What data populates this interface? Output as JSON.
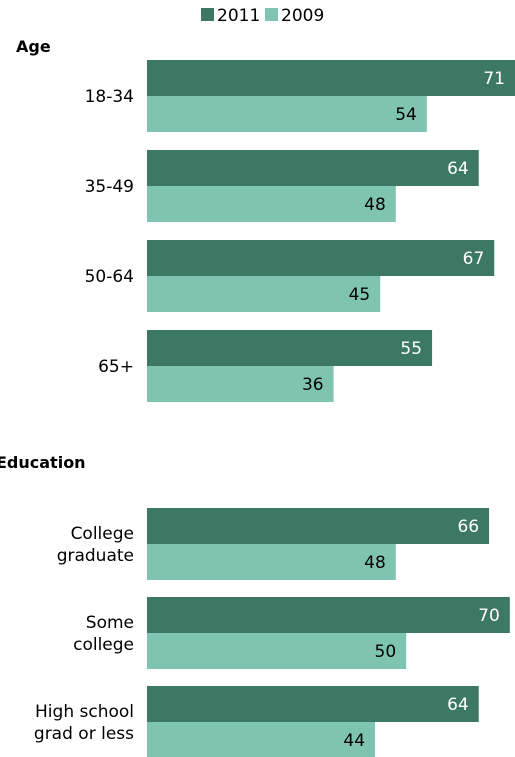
{
  "chart_data": {
    "type": "bar",
    "orientation": "horizontal",
    "legend": {
      "placement": "top",
      "entries": [
        {
          "name": "2011",
          "color": "#3d7864"
        },
        {
          "name": "2009",
          "color": "#7ec4b1"
        }
      ]
    },
    "series": [
      {
        "name": "2011",
        "color": "#3d7864"
      },
      {
        "name": "2009",
        "color": "#7ec4b1"
      }
    ],
    "xlim": [
      0,
      71
    ],
    "grid": false,
    "groups": [
      {
        "title": "Age",
        "categories": [
          {
            "label": [
              "18-34"
            ],
            "values": [
              71,
              54
            ]
          },
          {
            "label": [
              "35-49"
            ],
            "values": [
              64,
              48
            ]
          },
          {
            "label": [
              "50-64"
            ],
            "values": [
              67,
              45
            ]
          },
          {
            "label": [
              "65+"
            ],
            "values": [
              55,
              36
            ]
          }
        ]
      },
      {
        "title": "Education",
        "categories": [
          {
            "label": [
              "College",
              "graduate"
            ],
            "values": [
              66,
              48
            ]
          },
          {
            "label": [
              "Some",
              "college"
            ],
            "values": [
              70,
              50
            ]
          },
          {
            "label": [
              "High school",
              "grad or less"
            ],
            "values": [
              64,
              44
            ]
          }
        ]
      }
    ]
  }
}
